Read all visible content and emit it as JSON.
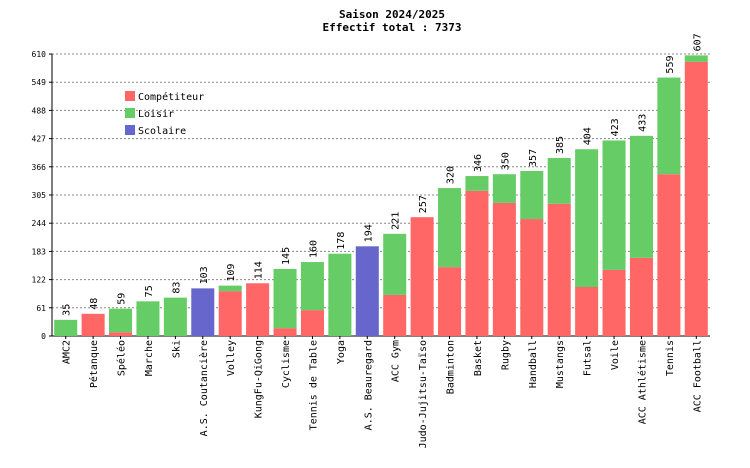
{
  "chart_data": {
    "type": "stacked_bar",
    "title": "Saison 2024/2025",
    "subtitle": "Effectif total : 7373",
    "categories": [
      "AMC2",
      "Pétanque",
      "Spéléo",
      "Marche",
      "Ski",
      "A.S. Coutancière",
      "Volley",
      "KungFu-QiGong",
      "Cyclisme",
      "Tennis de Table",
      "Yoga",
      "A.S. Beauregard",
      "ACC Gym",
      "Judo-Jujitsu-Taïso",
      "Badminton",
      "Basket",
      "Rugby",
      "Handball",
      "Mustangs",
      "Futsal",
      "Voile",
      "ACC Athlétisme",
      "Tennis",
      "ACC Football"
    ],
    "series": [
      {
        "name": "Compétiteur",
        "color": "#ff6666",
        "values": [
          0,
          48,
          8,
          0,
          0,
          0,
          97,
          114,
          17,
          56,
          0,
          0,
          89,
          257,
          149,
          314,
          288,
          253,
          286,
          106,
          143,
          169,
          350,
          593
        ]
      },
      {
        "name": "Loisir",
        "color": "#66cc66",
        "values": [
          35,
          0,
          51,
          75,
          83,
          0,
          12,
          0,
          128,
          104,
          178,
          0,
          132,
          0,
          171,
          32,
          62,
          104,
          99,
          298,
          280,
          264,
          209,
          14
        ]
      },
      {
        "name": "Scolaire",
        "color": "#6666cc",
        "values": [
          0,
          0,
          0,
          0,
          0,
          103,
          0,
          0,
          0,
          0,
          0,
          194,
          0,
          0,
          0,
          0,
          0,
          0,
          0,
          0,
          0,
          0,
          0,
          0
        ]
      }
    ],
    "totals": [
      35,
      48,
      59,
      75,
      83,
      103,
      109,
      114,
      145,
      160,
      178,
      194,
      221,
      257,
      320,
      346,
      350,
      357,
      385,
      404,
      423,
      433,
      559,
      607
    ],
    "ylim": [
      0,
      610
    ],
    "yticks": [
      0,
      61,
      122,
      183,
      244,
      305,
      366,
      427,
      488,
      549,
      610
    ],
    "grid": true,
    "legend": "upper-left"
  }
}
